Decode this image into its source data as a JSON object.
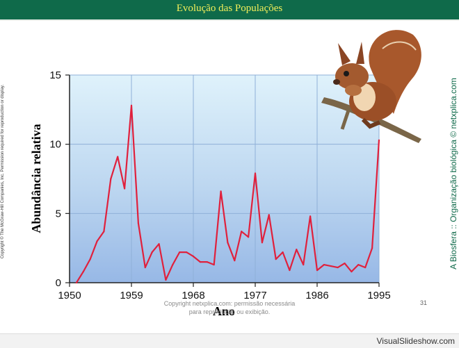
{
  "slide": {
    "title": "Evolução das Populações",
    "left_copyright": "Copyright © The McGraw-Hill Companies, Inc. Permission required for reproduction or display.",
    "right_credit": "A Biosfera :: Organização biológica © netxplica.com",
    "footer_copyright": "Copyright netxplica.com: permissão necessária para reprodução ou exibição.",
    "slide_number": "31",
    "watermark": "VisualSlideshow.com"
  },
  "chart_data": {
    "type": "line",
    "title": "",
    "xlabel": "Ano",
    "ylabel": "Abundância relativa",
    "xlim": [
      1950,
      1995
    ],
    "ylim": [
      0,
      15
    ],
    "x_ticks": [
      1950,
      1959,
      1968,
      1977,
      1986,
      1995
    ],
    "y_ticks": [
      0,
      5,
      10,
      15
    ],
    "grid": true,
    "series": [
      {
        "color": "#e0203c",
        "points": [
          [
            1951,
            0
          ],
          [
            1952,
            0.8
          ],
          [
            1953,
            1.7
          ],
          [
            1954,
            3
          ],
          [
            1955,
            3.7
          ],
          [
            1956,
            7.5
          ],
          [
            1957,
            9.1
          ],
          [
            1958,
            6.8
          ],
          [
            1959,
            12.8
          ],
          [
            1960,
            4.3
          ],
          [
            1961,
            1.1
          ],
          [
            1962,
            2.2
          ],
          [
            1963,
            2.8
          ],
          [
            1964,
            0.2
          ],
          [
            1965,
            1.3
          ],
          [
            1966,
            2.2
          ],
          [
            1967,
            2.2
          ],
          [
            1968,
            1.9
          ],
          [
            1969,
            1.5
          ],
          [
            1970,
            1.5
          ],
          [
            1971,
            1.3
          ],
          [
            1972,
            6.6
          ],
          [
            1973,
            2.9
          ],
          [
            1974,
            1.6
          ],
          [
            1975,
            3.7
          ],
          [
            1976,
            3.3
          ],
          [
            1977,
            7.9
          ],
          [
            1978,
            2.9
          ],
          [
            1979,
            4.9
          ],
          [
            1980,
            1.7
          ],
          [
            1981,
            2.2
          ],
          [
            1982,
            0.9
          ],
          [
            1983,
            2.4
          ],
          [
            1984,
            1.3
          ],
          [
            1985,
            4.8
          ],
          [
            1986,
            0.9
          ],
          [
            1987,
            1.3
          ],
          [
            1988,
            1.2
          ],
          [
            1989,
            1.1
          ],
          [
            1990,
            1.4
          ],
          [
            1991,
            0.8
          ],
          [
            1992,
            1.3
          ],
          [
            1993,
            1.1
          ],
          [
            1994,
            2.5
          ],
          [
            1995,
            10.3
          ]
        ]
      }
    ]
  }
}
